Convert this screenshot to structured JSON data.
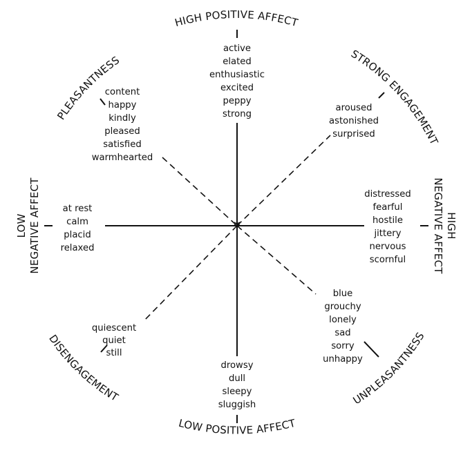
{
  "circumplex": {
    "dimensions": [
      {
        "id": "high-positive-affect",
        "label": "HIGH POSITIVE AFFECT"
      },
      {
        "id": "strong-engagement",
        "label": "STRONG ENGAGEMENT"
      },
      {
        "id": "high-negative-affect",
        "label": "HIGH NEGATIVE AFFECT"
      },
      {
        "id": "unpleasantness",
        "label": "UNPLEASANTNESS"
      },
      {
        "id": "low-positive-affect",
        "label": "LOW POSITIVE AFFECT"
      },
      {
        "id": "disengagement",
        "label": "DISENGAGEMENT"
      },
      {
        "id": "low-negative-affect",
        "label": "LOW NEGATIVE AFFECT"
      },
      {
        "id": "pleasantness",
        "label": "PLEASANTNESS"
      }
    ],
    "word_groups": {
      "high_positive_affect": [
        "active",
        "elated",
        "enthusiastic",
        "excited",
        "peppy",
        "strong"
      ],
      "strong_engagement": [
        "aroused",
        "astonished",
        "surprised"
      ],
      "high_negative_affect": [
        "distressed",
        "fearful",
        "hostile",
        "jittery",
        "nervous",
        "scornful"
      ],
      "unpleasantness": [
        "blue",
        "grouchy",
        "lonely",
        "sad",
        "sorry",
        "unhappy"
      ],
      "low_positive_affect": [
        "drowsy",
        "dull",
        "sleepy",
        "sluggish"
      ],
      "disengagement": [
        "quiescent",
        "quiet",
        "still"
      ],
      "low_negative_affect": [
        "at rest",
        "calm",
        "placid",
        "relaxed"
      ],
      "pleasantness": [
        "content",
        "happy",
        "kindly",
        "pleased",
        "satisfied",
        "warmhearted"
      ]
    }
  }
}
